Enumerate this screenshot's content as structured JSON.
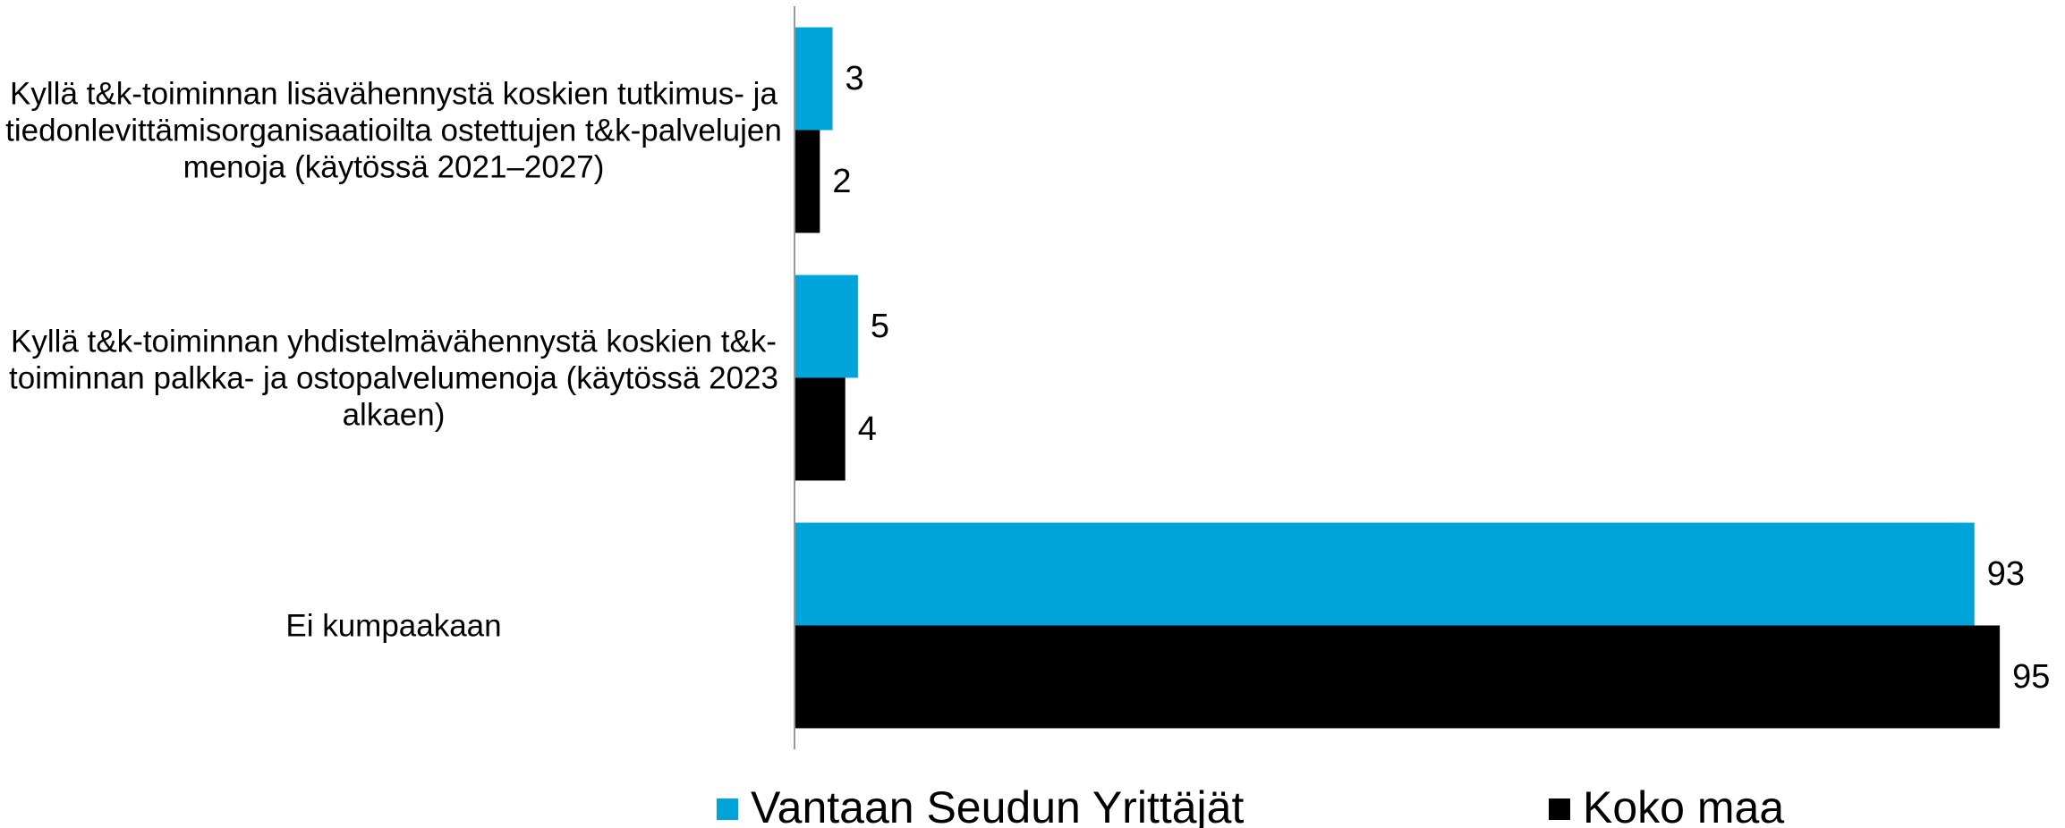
{
  "chart_data": {
    "type": "barh",
    "categories": [
      "Kyllä t&k-toiminnan lisävähennystä koskien tutkimus- ja tiedonlevittämisorganisaatioilta ostettujen t&k-palvelujen menoja (käytössä 2021–2027)",
      "Kyllä t&k-toiminnan yhdistelmävähennystä koskien t&k-toiminnan palkka- ja ostopalvelumenoja (käytössä 2023 alkaen)",
      "Ei kumpaakaan"
    ],
    "series": [
      {
        "name": "Vantaan Seudun Yrittäjät",
        "color": "#00a3da",
        "values": [
          3,
          5,
          93
        ]
      },
      {
        "name": "Koko maa",
        "color": "#000000",
        "values": [
          2,
          4,
          95
        ]
      }
    ],
    "xlim": [
      0,
      100
    ],
    "legend": "bottom"
  }
}
